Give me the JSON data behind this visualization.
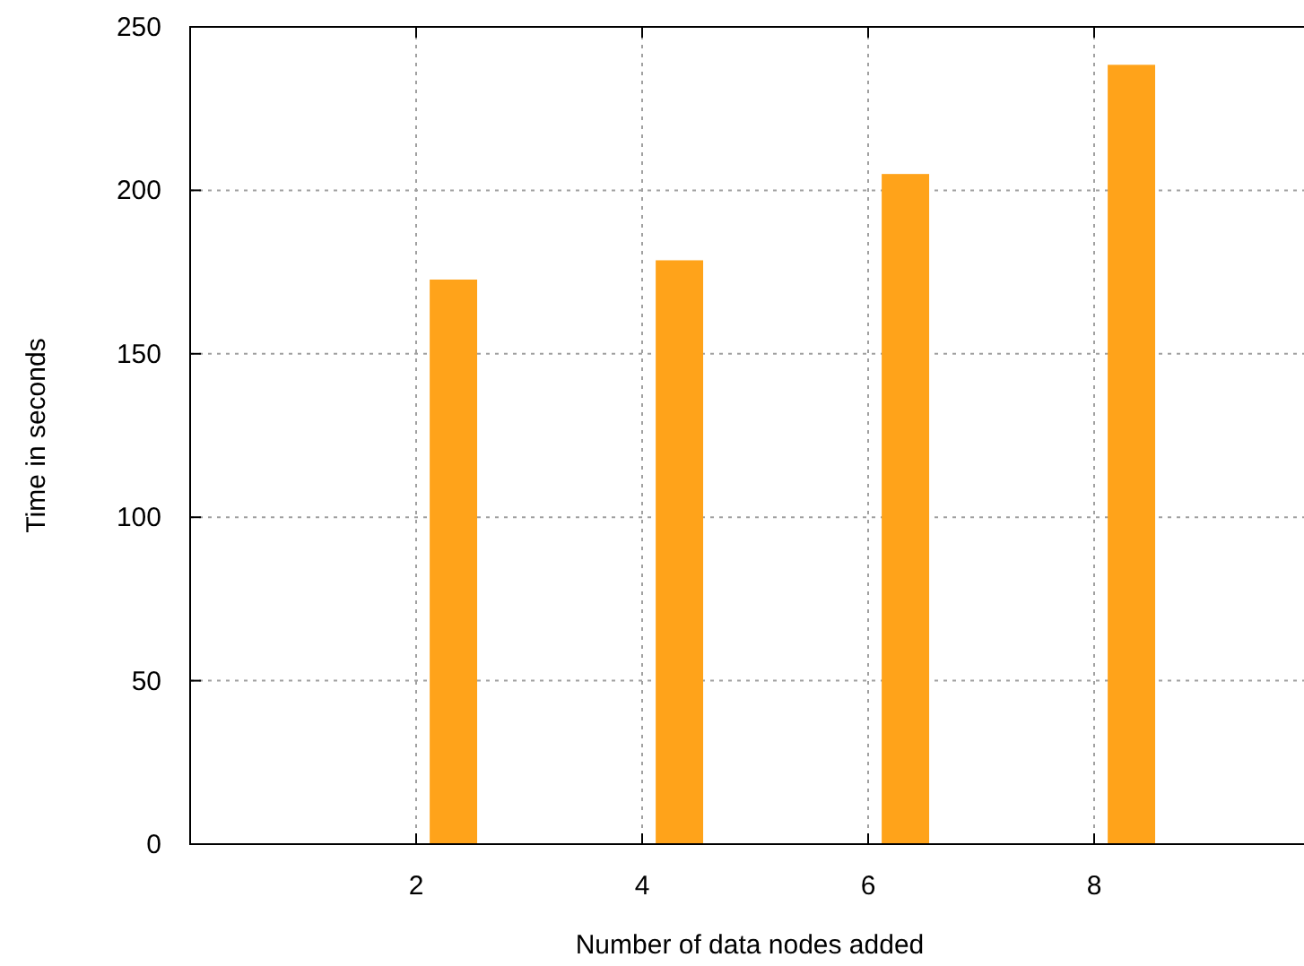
{
  "chart_data": {
    "type": "bar",
    "xlabel": "Number of data nodes added",
    "ylabel": "Time in seconds",
    "x": [
      2.33,
      4.33,
      6.33,
      8.33
    ],
    "series": [
      {
        "color": "#ffa31a",
        "values": [
          172.7,
          178.6,
          205,
          238.4
        ]
      }
    ],
    "xlim": [
      0,
      10
    ],
    "xticks": [
      2,
      4,
      6,
      8
    ],
    "ylim": [
      0,
      250
    ],
    "yticks": [
      0,
      50,
      100,
      150,
      200,
      250
    ],
    "grid": true
  }
}
